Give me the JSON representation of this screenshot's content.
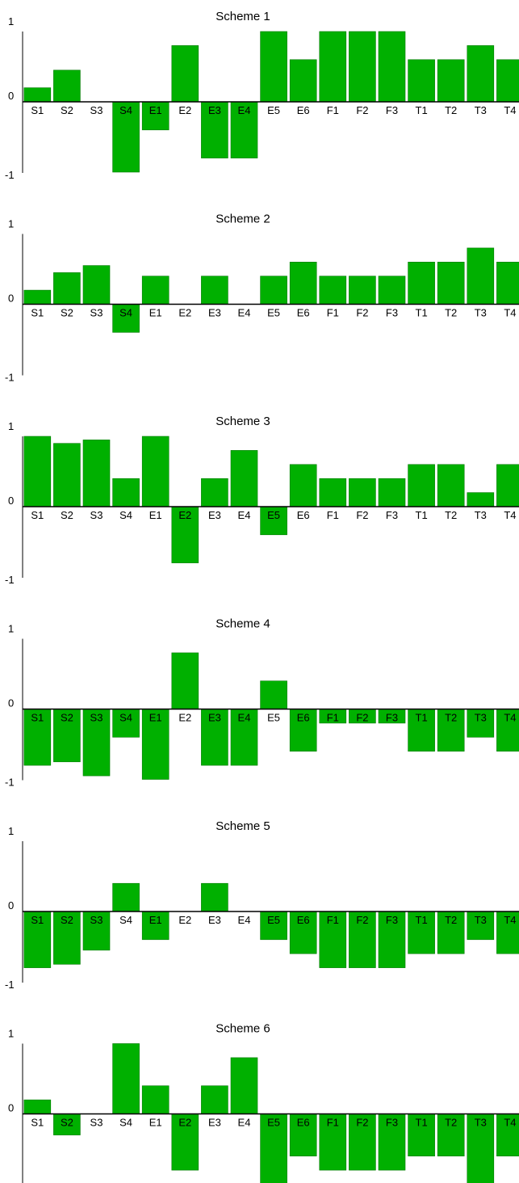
{
  "chart_data": [
    {
      "type": "bar",
      "title": "Scheme 1",
      "categories": [
        "S1",
        "S2",
        "S3",
        "S4",
        "E1",
        "E2",
        "E3",
        "E4",
        "E5",
        "E6",
        "F1",
        "F2",
        "F3",
        "T1",
        "T2",
        "T3",
        "T4"
      ],
      "values": [
        0.2,
        0.45,
        0,
        -1,
        -0.4,
        0.8,
        -0.8,
        -0.8,
        1,
        0.6,
        1,
        1,
        1,
        0.6,
        0.6,
        0.8,
        0.6
      ],
      "ylim": [
        -1,
        1
      ],
      "yticks": [
        "1",
        "0",
        "-1"
      ],
      "xlabel": "",
      "ylabel": "",
      "grid": false
    },
    {
      "type": "bar",
      "title": "Scheme 2",
      "categories": [
        "S1",
        "S2",
        "S3",
        "S4",
        "E1",
        "E2",
        "E3",
        "E4",
        "E5",
        "E6",
        "F1",
        "F2",
        "F3",
        "T1",
        "T2",
        "T3",
        "T4"
      ],
      "values": [
        0.2,
        0.45,
        0.55,
        -0.4,
        0.4,
        0,
        0.4,
        0,
        0.4,
        0.6,
        0.4,
        0.4,
        0.4,
        0.6,
        0.6,
        0.8,
        0.6
      ],
      "ylim": [
        -1,
        1
      ],
      "yticks": [
        "1",
        "0",
        "-1"
      ],
      "xlabel": "",
      "ylabel": "",
      "grid": false
    },
    {
      "type": "bar",
      "title": "Scheme 3",
      "categories": [
        "S1",
        "S2",
        "S3",
        "S4",
        "E1",
        "E2",
        "E3",
        "E4",
        "E5",
        "E6",
        "F1",
        "F2",
        "F3",
        "T1",
        "T2",
        "T3",
        "T4"
      ],
      "values": [
        1,
        0.9,
        0.95,
        0.4,
        1,
        -0.8,
        0.4,
        0.8,
        -0.4,
        0.6,
        0.4,
        0.4,
        0.4,
        0.6,
        0.6,
        0.2,
        0.6
      ],
      "ylim": [
        -1,
        1
      ],
      "yticks": [
        "1",
        "0",
        "-1"
      ],
      "xlabel": "",
      "ylabel": "",
      "grid": false
    },
    {
      "type": "bar",
      "title": "Scheme 4",
      "categories": [
        "S1",
        "S2",
        "S3",
        "S4",
        "E1",
        "E2",
        "E3",
        "E4",
        "E5",
        "E6",
        "F1",
        "F2",
        "F3",
        "T1",
        "T2",
        "T3",
        "T4"
      ],
      "values": [
        -0.8,
        -0.75,
        -0.95,
        -0.4,
        -1,
        0.8,
        -0.8,
        -0.8,
        0.4,
        -0.6,
        -0.2,
        -0.2,
        -0.2,
        -0.6,
        -0.6,
        -0.4,
        -0.6
      ],
      "ylim": [
        -1,
        1
      ],
      "yticks": [
        "1",
        "0",
        "-1"
      ],
      "xlabel": "",
      "ylabel": "",
      "grid": false
    },
    {
      "type": "bar",
      "title": "Scheme 5",
      "categories": [
        "S1",
        "S2",
        "S3",
        "S4",
        "E1",
        "E2",
        "E3",
        "E4",
        "E5",
        "E6",
        "F1",
        "F2",
        "F3",
        "T1",
        "T2",
        "T3",
        "T4"
      ],
      "values": [
        -0.8,
        -0.75,
        -0.55,
        0.4,
        -0.4,
        0,
        0.4,
        0,
        -0.4,
        -0.6,
        -0.8,
        -0.8,
        -0.8,
        -0.6,
        -0.6,
        -0.4,
        -0.6
      ],
      "ylim": [
        -1,
        1
      ],
      "yticks": [
        "1",
        "0",
        "-1"
      ],
      "xlabel": "",
      "ylabel": "",
      "grid": false
    },
    {
      "type": "bar",
      "title": "Scheme 6",
      "categories": [
        "S1",
        "S2",
        "S3",
        "S4",
        "E1",
        "E2",
        "E3",
        "E4",
        "E5",
        "E6",
        "F1",
        "F2",
        "F3",
        "T1",
        "T2",
        "T3",
        "T4"
      ],
      "values": [
        0.2,
        -0.3,
        0,
        1,
        0.4,
        -0.8,
        0.4,
        0.8,
        -1,
        -0.6,
        -0.8,
        -0.8,
        -0.8,
        -0.6,
        -0.6,
        -1,
        -0.6
      ],
      "ylim": [
        -1,
        1
      ],
      "yticks": [
        "1",
        "0",
        "-1"
      ],
      "xlabel": "",
      "ylabel": "",
      "grid": false
    }
  ],
  "colors": {
    "bar_fill": "#00b000",
    "bar_stroke": "#007a00",
    "axis": "#000000"
  }
}
